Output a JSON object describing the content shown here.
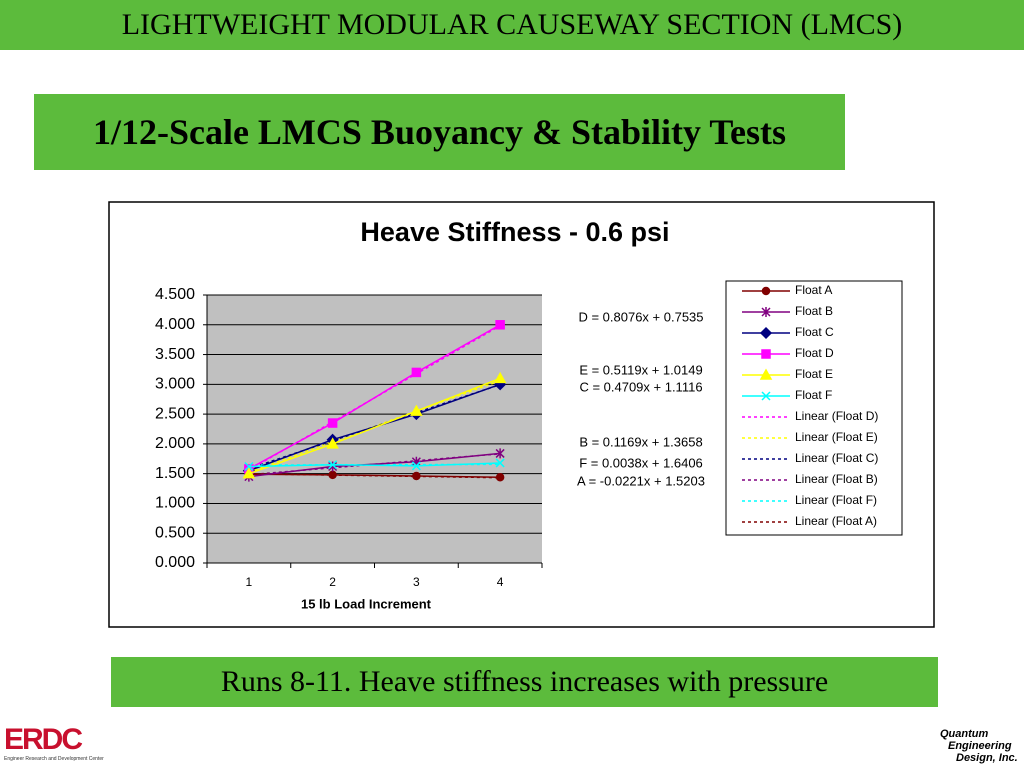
{
  "slide": {
    "header": "LIGHTWEIGHT MODULAR CAUSEWAY SECTION (LMCS)",
    "title": "1/12-Scale LMCS Buoyancy & Stability Tests",
    "caption": "Runs 8-11. Heave stiffness increases with pressure",
    "logo_left": "ERDC",
    "logo_left_sub": "Engineer Research and Development Center",
    "logo_right": [
      "Quantum",
      "Engineering",
      "Design, Inc."
    ]
  },
  "chart_data": {
    "type": "line",
    "title": "Heave Stiffness - 0.6 psi",
    "x_label": "15 lb Load Increment",
    "categories": [
      "1",
      "2",
      "3",
      "4"
    ],
    "ylim": [
      0,
      4.5
    ],
    "yticks": [
      {
        "value": 0,
        "label": "0.000"
      },
      {
        "value": 0.5,
        "label": "0.500"
      },
      {
        "value": 1,
        "label": "1.000"
      },
      {
        "value": 1.5,
        "label": "1.500"
      },
      {
        "value": 2,
        "label": "2.000"
      },
      {
        "value": 2.5,
        "label": "2.500"
      },
      {
        "value": 3,
        "label": "3.000"
      },
      {
        "value": 3.5,
        "label": "3.500"
      },
      {
        "value": 4,
        "label": "4.000"
      },
      {
        "value": 4.5,
        "label": "4.500"
      }
    ],
    "grid": true,
    "series": [
      {
        "name": "Float A",
        "color": "#800000",
        "marker": "circle",
        "values": [
          1.49,
          1.48,
          1.46,
          1.44
        ]
      },
      {
        "name": "Float B",
        "color": "#800080",
        "marker": "star",
        "values": [
          1.45,
          1.62,
          1.7,
          1.84
        ]
      },
      {
        "name": "Float C",
        "color": "#000080",
        "marker": "diamond",
        "values": [
          1.55,
          2.07,
          2.5,
          3.0
        ]
      },
      {
        "name": "Float D",
        "color": "#ff00ff",
        "marker": "square",
        "values": [
          1.58,
          2.35,
          3.2,
          4.0
        ]
      },
      {
        "name": "Float E",
        "color": "#ffff00",
        "marker": "triangle",
        "values": [
          1.5,
          2.0,
          2.55,
          3.1
        ]
      },
      {
        "name": "Float F",
        "color": "#00ffff",
        "marker": "x",
        "values": [
          1.62,
          1.65,
          1.63,
          1.68
        ]
      }
    ],
    "trendlines": [
      {
        "name": "Linear (Float D)",
        "color": "#ff00ff",
        "slope": 0.8076,
        "intercept": 0.7535,
        "equation": "D = 0.8076x + 0.7535"
      },
      {
        "name": "Linear (Float E)",
        "color": "#ffff00",
        "slope": 0.5119,
        "intercept": 1.0149,
        "equation": "E = 0.5119x + 1.0149"
      },
      {
        "name": "Linear (Float C)",
        "color": "#000080",
        "slope": 0.4709,
        "intercept": 1.1116,
        "equation": "C = 0.4709x + 1.1116"
      },
      {
        "name": "Linear (Float B)",
        "color": "#800080",
        "slope": 0.1169,
        "intercept": 1.3658,
        "equation": "B = 0.1169x + 1.3658"
      },
      {
        "name": "Linear (Float F)",
        "color": "#00ffff",
        "slope": 0.0038,
        "intercept": 1.6406,
        "equation": "F = 0.0038x + 1.6406"
      },
      {
        "name": "Linear (Float A)",
        "color": "#800000",
        "slope": -0.0221,
        "intercept": 1.5203,
        "equation": "A = -0.0221x + 1.5203"
      }
    ]
  }
}
